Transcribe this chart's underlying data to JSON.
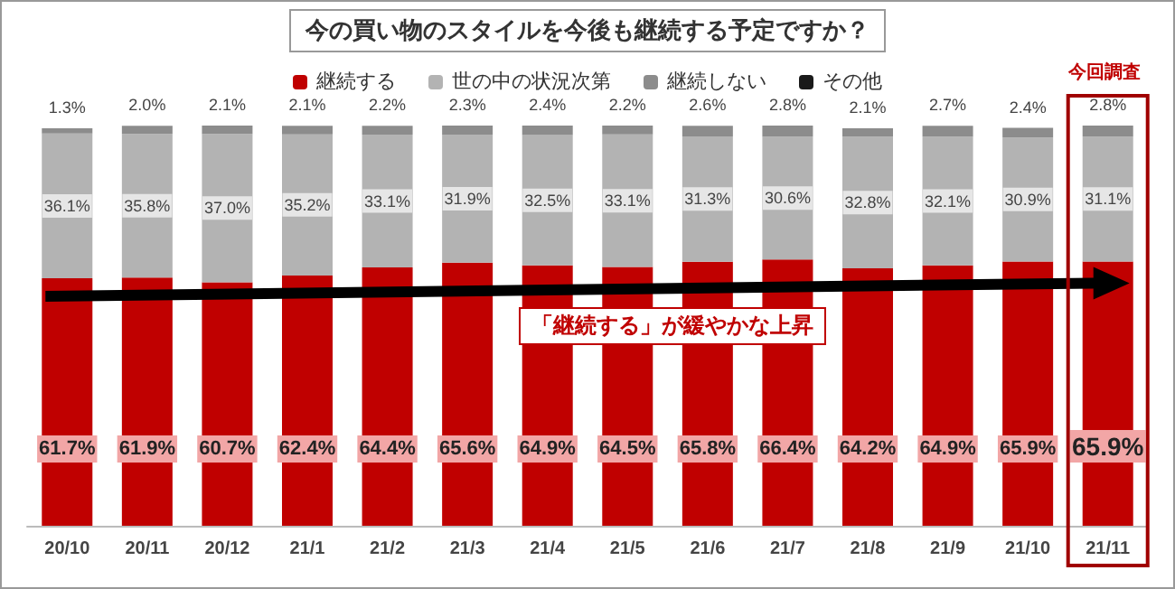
{
  "chart_data": {
    "type": "bar",
    "title": "今の買い物のスタイルを今後も継続する予定ですか？",
    "stacked": true,
    "legend": "top",
    "categories": [
      "20/10",
      "20/11",
      "20/12",
      "21/1",
      "21/2",
      "21/3",
      "21/4",
      "21/5",
      "21/6",
      "21/7",
      "21/8",
      "21/9",
      "21/10",
      "21/11"
    ],
    "series": [
      {
        "name": "継続する",
        "color": "#c00000",
        "values": [
          61.7,
          61.9,
          60.7,
          62.4,
          64.4,
          65.6,
          64.9,
          64.5,
          65.8,
          66.4,
          64.2,
          64.9,
          65.9,
          65.9
        ],
        "value_labels": [
          "61.7%",
          "61.9%",
          "60.7%",
          "62.4%",
          "64.4%",
          "65.6%",
          "64.9%",
          "64.5%",
          "65.8%",
          "66.4%",
          "64.2%",
          "64.9%",
          "65.9%",
          "65.9%"
        ]
      },
      {
        "name": "世の中の状況次第",
        "color": "#b3b3b3",
        "values": [
          36.1,
          35.8,
          37.0,
          35.2,
          33.1,
          31.9,
          32.5,
          33.1,
          31.3,
          30.6,
          32.8,
          32.1,
          30.9,
          31.1
        ],
        "value_labels": [
          "36.1%",
          "35.8%",
          "37.0%",
          "35.2%",
          "33.1%",
          "31.9%",
          "32.5%",
          "33.1%",
          "31.3%",
          "30.6%",
          "32.8%",
          "32.1%",
          "30.9%",
          "31.1%"
        ]
      },
      {
        "name": "継続しない",
        "color": "#8c8c8c",
        "values": [
          1.3,
          2.0,
          2.1,
          2.1,
          2.2,
          2.3,
          2.4,
          2.2,
          2.6,
          2.8,
          2.1,
          2.7,
          2.4,
          2.8
        ],
        "value_labels": [
          "1.3%",
          "2.0%",
          "2.1%",
          "2.1%",
          "2.2%",
          "2.3%",
          "2.4%",
          "2.2%",
          "2.6%",
          "2.8%",
          "2.1%",
          "2.7%",
          "2.4%",
          "2.8%"
        ]
      },
      {
        "name": "その他",
        "color": "#1a1a1a",
        "values": [
          null,
          null,
          null,
          null,
          null,
          null,
          null,
          null,
          null,
          null,
          null,
          null,
          null,
          null
        ]
      }
    ],
    "annotations": [
      "「継続する」が緩やかな上昇",
      "今回調査"
    ]
  }
}
